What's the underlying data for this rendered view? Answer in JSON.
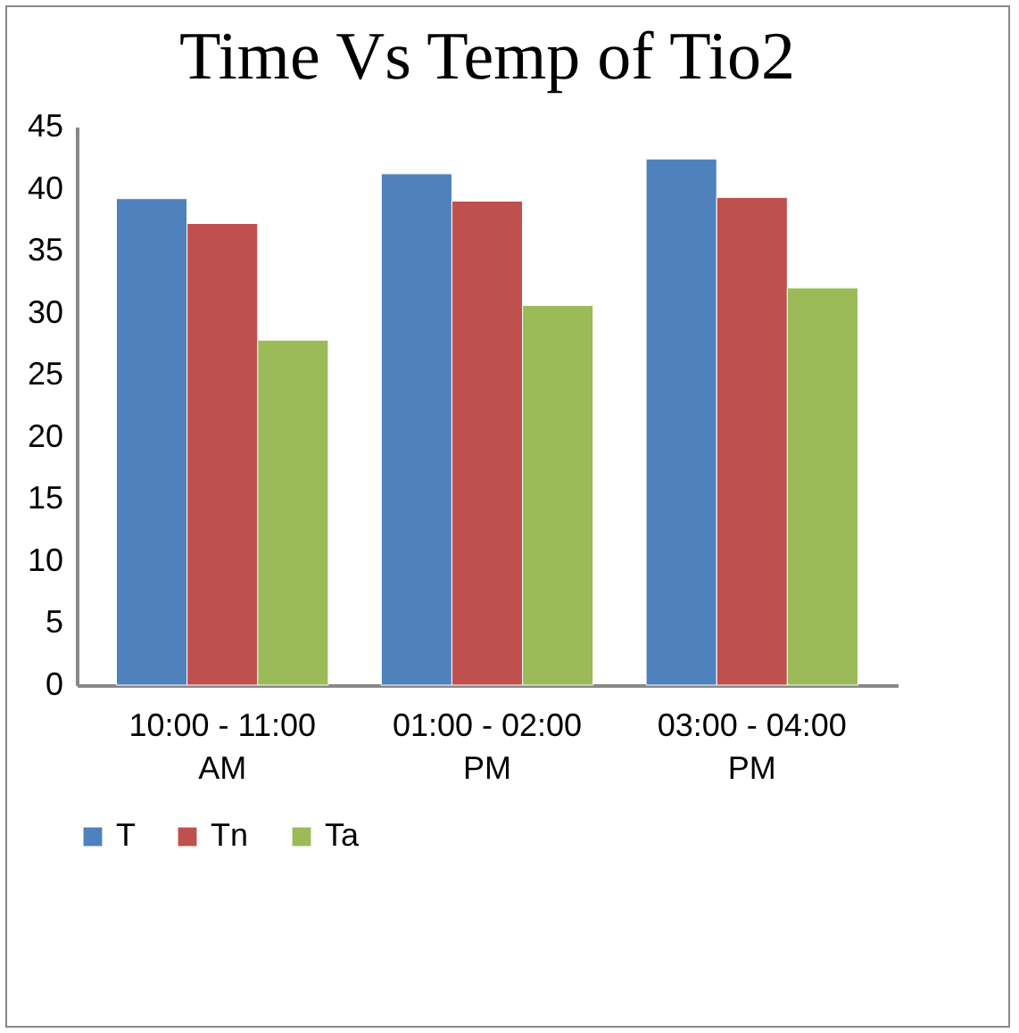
{
  "chart_data": {
    "type": "bar",
    "title": "Time Vs Temp of Tio2",
    "categories": [
      "10:00 - 11:00 AM",
      "01:00 - 02:00 PM",
      "03:00 - 04:00 PM"
    ],
    "series": [
      {
        "name": "T",
        "color": "#4f81bd",
        "values": [
          39.2,
          41.2,
          42.4
        ]
      },
      {
        "name": "Tn",
        "color": "#c0504d",
        "values": [
          37.2,
          39.0,
          39.3
        ]
      },
      {
        "name": "Ta",
        "color": "#9bbb59",
        "values": [
          27.8,
          30.6,
          32.0
        ]
      }
    ],
    "ylim": [
      0,
      45
    ],
    "yticks": [
      0,
      5,
      10,
      15,
      20,
      25,
      30,
      35,
      40,
      45
    ],
    "grid": false,
    "legend": "bottom"
  }
}
